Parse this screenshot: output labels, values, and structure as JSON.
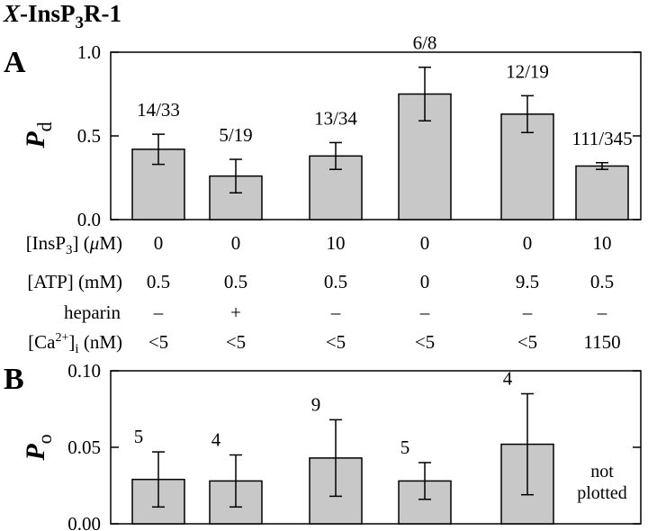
{
  "title": [
    "X",
    "-InsP",
    "3",
    "R-1"
  ],
  "chart_data": [
    {
      "type": "bar",
      "panel": "A",
      "y_label": [
        "P",
        "d"
      ],
      "values": [
        0.42,
        0.26,
        0.38,
        0.75,
        0.63,
        0.32
      ],
      "errors": [
        0.09,
        0.1,
        0.08,
        0.16,
        0.11,
        0.02
      ],
      "annotations": [
        "14/33",
        "5/19",
        "13/34",
        "6/8",
        "12/19",
        "111/345"
      ],
      "color": "#c8c8c8",
      "ylim": [
        0,
        1
      ],
      "yticks": [
        {
          "value": 0,
          "label": "0.0"
        },
        {
          "value": 0.5,
          "label": "0.5"
        },
        {
          "value": 1,
          "label": "1.0"
        }
      ]
    },
    {
      "type": "bar",
      "panel": "B",
      "y_label": [
        "P",
        "o"
      ],
      "values": [
        0.029,
        0.028,
        0.043,
        0.028,
        0.052,
        null
      ],
      "errors": [
        0.018,
        0.017,
        0.025,
        0.012,
        0.033,
        null
      ],
      "annotations": [
        "5",
        "4",
        "9",
        "5",
        "4",
        null
      ],
      "note": [
        "not",
        "plotted"
      ],
      "color": "#c8c8c8",
      "ylim": [
        0,
        0.1
      ],
      "yticks": [
        {
          "value": 0,
          "label": "0.00"
        },
        {
          "value": 0.05,
          "label": "0.05"
        },
        {
          "value": 0.1,
          "label": "0.10"
        }
      ]
    }
  ],
  "conditions": {
    "rows": [
      {
        "label": [
          "[InsP",
          "3",
          "] (",
          "μ",
          "M)"
        ],
        "values": [
          "0",
          "0",
          "10",
          "0",
          "0",
          "10"
        ]
      },
      {
        "label": [
          "[ATP] (mM)"
        ],
        "values": [
          "0.5",
          "0.5",
          "0.5",
          "0",
          "9.5",
          "0.5"
        ]
      },
      {
        "label": [
          "heparin"
        ],
        "values": [
          "–",
          "+",
          "–",
          "–",
          "–",
          "–"
        ]
      },
      {
        "label": [
          "[Ca",
          "2+",
          "]",
          "i",
          " (nM)"
        ],
        "values": [
          "<5",
          "<5",
          "<5",
          "<5",
          "<5",
          "1150"
        ]
      }
    ]
  }
}
